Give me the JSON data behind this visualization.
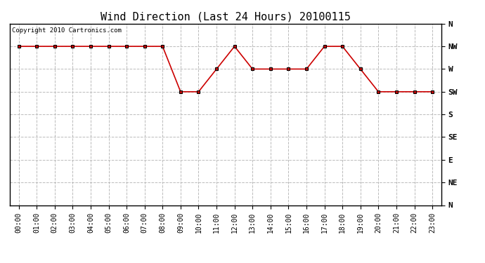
{
  "title": "Wind Direction (Last 24 Hours) 20100115",
  "copyright_text": "Copyright 2010 Cartronics.com",
  "background_color": "#ffffff",
  "plot_bg_color": "#ffffff",
  "grid_color": "#bbbbbb",
  "line_color": "#cc0000",
  "marker_color": "#cc0000",
  "x_labels": [
    "00:00",
    "01:00",
    "02:00",
    "03:00",
    "04:00",
    "05:00",
    "06:00",
    "07:00",
    "08:00",
    "09:00",
    "10:00",
    "11:00",
    "12:00",
    "13:00",
    "14:00",
    "15:00",
    "16:00",
    "17:00",
    "18:00",
    "19:00",
    "20:00",
    "21:00",
    "22:00",
    "23:00"
  ],
  "direction_labels": [
    "N",
    "NW",
    "W",
    "SW",
    "S",
    "SE",
    "E",
    "NE",
    "N"
  ],
  "wind_data": {
    "00": 7,
    "01": 7,
    "02": 7,
    "03": 7,
    "04": 7,
    "05": 7,
    "06": 7,
    "07": 7,
    "08": 7,
    "09": 5,
    "10": 5,
    "11": 6,
    "12": 7,
    "13": 6,
    "14": 6,
    "15": 6,
    "16": 6,
    "17": 7,
    "18": 7,
    "19": 6,
    "20": 5,
    "21": 5,
    "22": 5,
    "23": 5
  },
  "ytick_positions": [
    8,
    7,
    6,
    5,
    4,
    3,
    2,
    1,
    0
  ],
  "ytick_labels": [
    "N",
    "NW",
    "W",
    "SW",
    "S",
    "SE",
    "E",
    "NE",
    "N"
  ],
  "ylim": [
    0,
    8
  ],
  "title_fontsize": 11,
  "copyright_fontsize": 6.5,
  "tick_fontsize": 7,
  "ytick_fontsize": 8
}
